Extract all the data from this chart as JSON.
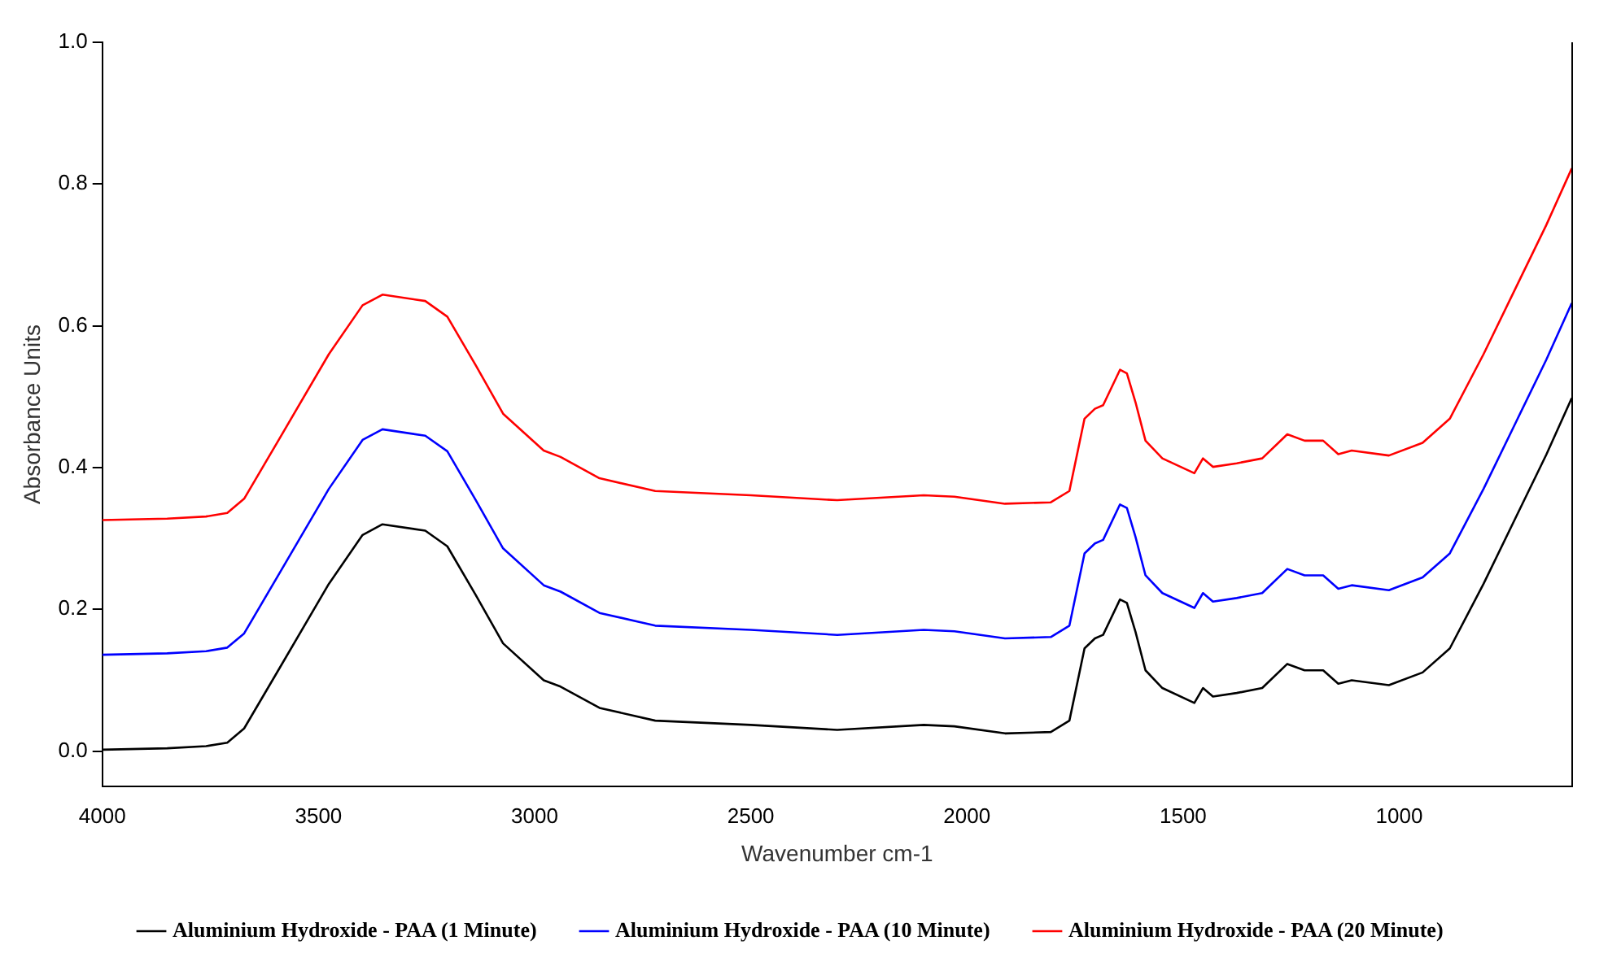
{
  "chart_data": {
    "type": "line",
    "xlabel": "Wavenumber cm-1",
    "ylabel": "Absorbance Units",
    "x": [
      4000,
      3850,
      3760,
      3711,
      3672,
      3593,
      3476,
      3398,
      3352,
      3253,
      3202,
      3136,
      3073,
      2979,
      2940,
      2850,
      2721,
      2500,
      2300,
      2100,
      2029,
      1912,
      1806,
      1763,
      1728,
      1704,
      1685,
      1646,
      1630,
      1610,
      1587,
      1548,
      1474,
      1454,
      1431,
      1376,
      1317,
      1259,
      1219,
      1176,
      1141,
      1110,
      1024,
      946,
      883,
      805,
      727,
      660,
      601
    ],
    "series": [
      {
        "name": "Aluminium Hydroxide - PAA (1 Minute)",
        "color": "#000000",
        "values": [
          0.002,
          0.004,
          0.007,
          0.012,
          0.032,
          0.114,
          0.236,
          0.305,
          0.32,
          0.311,
          0.289,
          0.22,
          0.152,
          0.1,
          0.091,
          0.061,
          0.043,
          0.037,
          0.03,
          0.037,
          0.035,
          0.025,
          0.027,
          0.043,
          0.145,
          0.159,
          0.164,
          0.214,
          0.209,
          0.168,
          0.114,
          0.089,
          0.068,
          0.089,
          0.077,
          0.082,
          0.089,
          0.123,
          0.114,
          0.114,
          0.095,
          0.1,
          0.093,
          0.111,
          0.145,
          0.236,
          0.334,
          0.418,
          0.498
        ]
      },
      {
        "name": "Aluminium Hydroxide - PAA (10 Minute)",
        "color": "#0000ff",
        "values": [
          0.136,
          0.138,
          0.141,
          0.146,
          0.166,
          0.248,
          0.37,
          0.439,
          0.454,
          0.445,
          0.423,
          0.354,
          0.286,
          0.234,
          0.225,
          0.195,
          0.177,
          0.171,
          0.164,
          0.171,
          0.169,
          0.159,
          0.161,
          0.177,
          0.279,
          0.293,
          0.298,
          0.348,
          0.343,
          0.302,
          0.248,
          0.223,
          0.202,
          0.223,
          0.211,
          0.216,
          0.223,
          0.257,
          0.248,
          0.248,
          0.229,
          0.234,
          0.227,
          0.245,
          0.279,
          0.37,
          0.468,
          0.552,
          0.632
        ]
      },
      {
        "name": "Aluminium Hydroxide - PAA (20 Minute)",
        "color": "#ff0000",
        "values": [
          0.326,
          0.328,
          0.331,
          0.336,
          0.356,
          0.438,
          0.56,
          0.629,
          0.644,
          0.635,
          0.613,
          0.544,
          0.476,
          0.424,
          0.415,
          0.385,
          0.367,
          0.361,
          0.354,
          0.361,
          0.359,
          0.349,
          0.351,
          0.367,
          0.469,
          0.483,
          0.488,
          0.538,
          0.533,
          0.492,
          0.438,
          0.413,
          0.392,
          0.413,
          0.401,
          0.406,
          0.413,
          0.447,
          0.438,
          0.438,
          0.419,
          0.424,
          0.417,
          0.435,
          0.469,
          0.56,
          0.658,
          0.742,
          0.822
        ]
      }
    ],
    "xlim": [
      4000,
      600
    ],
    "xticks": [
      4000,
      3500,
      3000,
      2500,
      2000,
      1500,
      1000
    ],
    "ylim": [
      -0.05,
      1.0
    ],
    "yticks": [
      {
        "value": 0,
        "label": "0.0"
      },
      {
        "value": 0.2,
        "label": "0.2"
      },
      {
        "value": 0.4,
        "label": "0.4"
      },
      {
        "value": 0.6,
        "label": "0.6"
      },
      {
        "value": 0.8,
        "label": "0.8"
      },
      {
        "value": 1.0,
        "label": "1.0"
      }
    ],
    "grid": false,
    "legend": "bottom",
    "marker": "none",
    "line_style": "solid"
  }
}
